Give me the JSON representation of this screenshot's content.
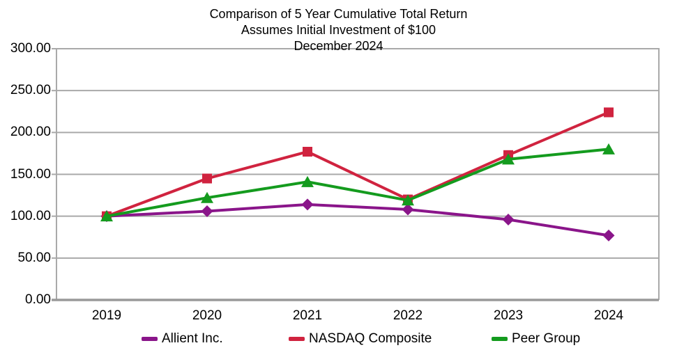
{
  "chart_data": {
    "type": "line",
    "title_lines": [
      "Comparison of 5 Year Cumulative Total Return",
      "Assumes Initial Investment of $100",
      "December 2024"
    ],
    "categories": [
      "2019",
      "2020",
      "2021",
      "2022",
      "2023",
      "2024"
    ],
    "series": [
      {
        "name": "Allient Inc.",
        "color": "#8A158A",
        "marker": "diamond",
        "values": [
          100,
          106,
          114,
          108,
          96,
          77
        ]
      },
      {
        "name": "NASDAQ Composite",
        "color": "#D0233F",
        "marker": "square",
        "values": [
          100,
          145,
          177,
          120,
          173,
          224
        ]
      },
      {
        "name": "Peer Group",
        "color": "#149B1E",
        "marker": "triangle",
        "values": [
          100,
          122,
          141,
          119,
          168,
          180
        ]
      }
    ],
    "ylim": [
      0,
      300
    ],
    "ytick_step": 50,
    "ytick_labels": [
      "0.00",
      "50.00",
      "100.00",
      "150.00",
      "200.00",
      "250.00",
      "300.00"
    ],
    "grid": true,
    "legend_position": "bottom",
    "colors": {
      "grid": "#A9A9A9",
      "border": "#A9A9A9",
      "axis": "#999999",
      "text": "#000000",
      "background": "#FFFFFF"
    }
  }
}
